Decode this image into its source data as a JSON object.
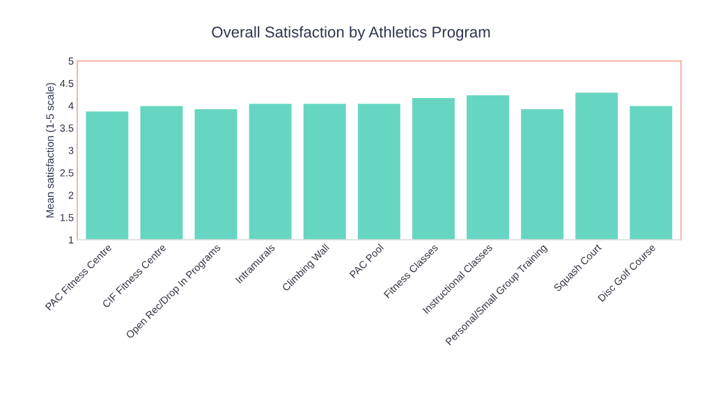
{
  "chart_data": {
    "type": "bar",
    "title": "Overall Satisfaction by Athletics Program",
    "ylabel": "Mean satisfaction (1-5 scale)",
    "categories": [
      "PAC Fitness Centre",
      "CIF Fitness Centre",
      "Open Rec/Drop In Programs",
      "Intramurals",
      "Climbing Wall",
      "PAC Pool",
      "Fitness Classes",
      "Instructional Classes",
      "Personal/Small Group Training",
      "Squash Court",
      "Disc Golf Course"
    ],
    "values": [
      3.87,
      3.99,
      3.92,
      4.04,
      4.04,
      4.04,
      4.17,
      4.23,
      3.92,
      4.29,
      3.99
    ],
    "color": "#66d6c2",
    "ylim": [
      1,
      5
    ],
    "yticks": [
      1,
      {
        "value": 1.5,
        "label": "1.5"
      },
      2,
      {
        "value": 2.5,
        "label": "2.5"
      },
      3,
      {
        "value": 3.5,
        "label": "3.5"
      },
      4,
      {
        "value": 4.5,
        "label": "4.5"
      },
      5
    ],
    "grid": false,
    "legend": false
  }
}
